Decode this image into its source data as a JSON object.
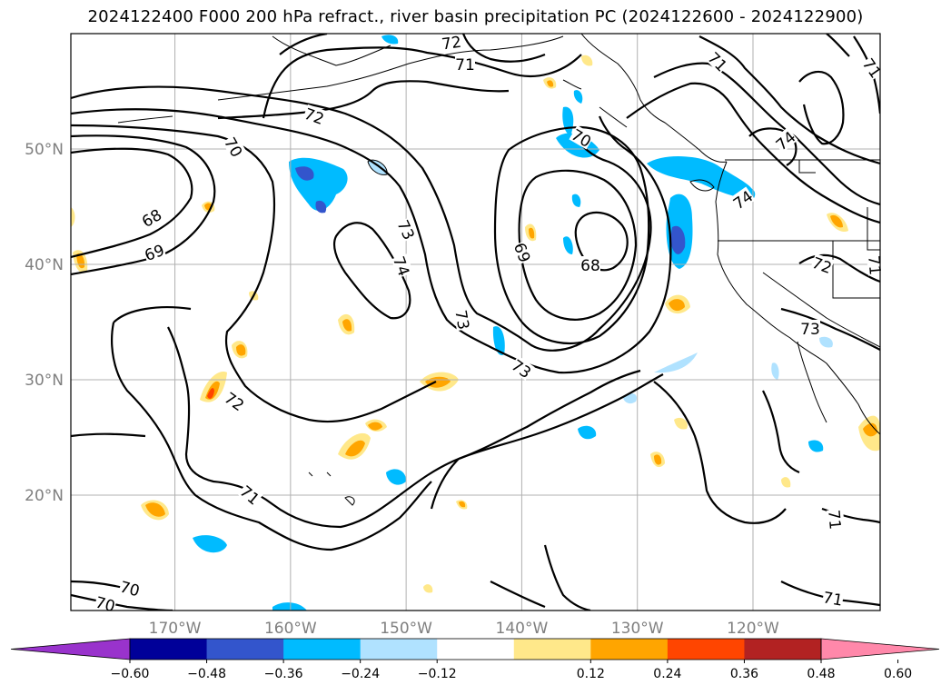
{
  "title": "2024122400 F000 200 hPa refract., river basin precipitation PC (2024122600 - 2024122900)",
  "chart_data": {
    "type": "map",
    "projection": "lat-lon",
    "lon_range": [
      -179,
      -109
    ],
    "lat_range": [
      10,
      60
    ],
    "grid": true,
    "lat_ticks": [
      {
        "value": 20,
        "label": "20°N"
      },
      {
        "value": 30,
        "label": "30°N"
      },
      {
        "value": 40,
        "label": "40°N"
      },
      {
        "value": 50,
        "label": "50°N"
      }
    ],
    "lon_ticks": [
      {
        "value": -170,
        "label": "170°W"
      },
      {
        "value": -160,
        "label": "160°W"
      },
      {
        "value": -150,
        "label": "150°W"
      },
      {
        "value": -140,
        "label": "140°W"
      },
      {
        "value": -130,
        "label": "130°W"
      },
      {
        "value": -120,
        "label": "120°W"
      }
    ],
    "contour_labels": [
      "72",
      "71",
      "71",
      "71",
      "72",
      "70",
      "70",
      "68",
      "69",
      "73",
      "74",
      "73",
      "73",
      "69",
      "68",
      "74",
      "74",
      "72",
      "71",
      "73",
      "72",
      "71",
      "70",
      "70",
      "71",
      "71"
    ],
    "colorbar": {
      "levels": [
        "−0.60",
        "−0.48",
        "−0.36",
        "−0.24",
        "−0.12",
        "0.12",
        "0.24",
        "0.36",
        "0.48",
        "0.60"
      ],
      "colors": [
        "#9933cc",
        "#000099",
        "#3355cc",
        "#00bbff",
        "#b0e2ff",
        "#ffffff",
        "#ffe88a",
        "#ffa500",
        "#ff4500",
        "#b22222",
        "#ff88aa"
      ],
      "extend": "both"
    }
  }
}
